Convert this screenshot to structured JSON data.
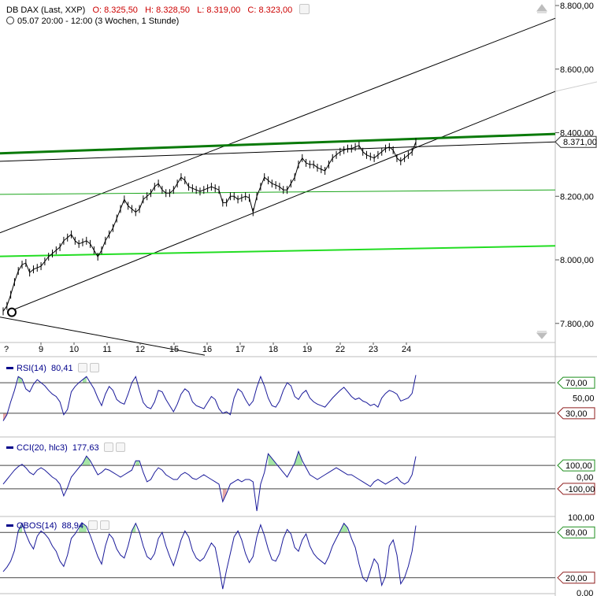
{
  "header": {
    "instrument": "DB DAX (Last, XXP)",
    "open": "O: 8.325,50",
    "high": "H: 8.328,50",
    "low": "L: 8.319,00",
    "close": "C: 8.323,00",
    "period": "05.07 20:00 - 12:00 (3 Wochen, 1 Stunde)"
  },
  "colors": {
    "price_line": "#000000",
    "trend_dark_green": "#0a7a0a",
    "trend_green": "#1aa51a",
    "trend_bright_green": "#22dd22",
    "indicator_line": "#1a1a9a",
    "overbought_fill": "#a6e6a6",
    "oversold_fill": "#e6a6a6"
  },
  "chart_data": [
    {
      "type": "line",
      "title": "DB DAX (Last, XXP)",
      "ylim": [
        7740,
        8810
      ],
      "yticks": [
        7800,
        8000,
        8200,
        8400,
        8600,
        8800
      ],
      "ytick_labels": [
        "7.800,00",
        "8.000,00",
        "8.200,00",
        "8.400,00",
        "8.600,00",
        "8.800,00"
      ],
      "last_value_label": "8.371,00",
      "last_value": 8371,
      "x_day_ticks": [
        "9",
        "10",
        "11",
        "12",
        "15",
        "16",
        "17",
        "18",
        "19",
        "22",
        "23",
        "24"
      ],
      "x_first_tick": "?",
      "series": [
        {
          "values": [
            7838,
            7855,
            7890,
            7930,
            7965,
            7985,
            7990,
            7960,
            7970,
            7975,
            7980,
            7995,
            8010,
            8020,
            8030,
            8040,
            8060,
            8070,
            8080,
            8060,
            8050,
            8055,
            8060,
            8050,
            8030,
            8010,
            8030,
            8060,
            8080,
            8100,
            8130,
            8160,
            8190,
            8170,
            8160,
            8150,
            8160,
            8190,
            8200,
            8210,
            8230,
            8240,
            8220,
            8210,
            8210,
            8220,
            8240,
            8260,
            8250,
            8230,
            8225,
            8220,
            8215,
            8220,
            8225,
            8230,
            8225,
            8220,
            8180,
            8180,
            8200,
            8200,
            8190,
            8195,
            8200,
            8195,
            8150,
            8200,
            8230,
            8260,
            8250,
            8240,
            8235,
            8230,
            8220,
            8220,
            8240,
            8260,
            8300,
            8320,
            8305,
            8300,
            8300,
            8290,
            8285,
            8280,
            8300,
            8320,
            8330,
            8340,
            8345,
            8350,
            8350,
            8355,
            8360,
            8340,
            8330,
            8325,
            8320,
            8330,
            8340,
            8350,
            8355,
            8345,
            8320,
            8310,
            8320,
            8330,
            8340,
            8371
          ]
        }
      ],
      "trend_lines": [
        {
          "name": "dark-green-resistance",
          "y_start": 8335,
          "y_end": 8396
        },
        {
          "name": "green-support",
          "y_start": 8206,
          "y_end": 8220
        },
        {
          "name": "bright-green-support",
          "y_start": 8011,
          "y_end": 8044
        },
        {
          "name": "horizontal-channel",
          "y_start": 8310,
          "y_end": 8371
        }
      ]
    },
    {
      "type": "line",
      "title": "RSI(14)",
      "current_value": "80,41",
      "ylim": [
        0,
        100
      ],
      "levels": [
        70,
        30
      ],
      "level_labels": [
        "70,00",
        "30,00"
      ],
      "axis_labels": [
        "50,00"
      ],
      "series": [
        {
          "values": [
            20,
            28,
            45,
            60,
            78,
            75,
            62,
            58,
            68,
            74,
            70,
            66,
            60,
            55,
            52,
            45,
            28,
            35,
            58,
            65,
            70,
            74,
            78,
            70,
            62,
            50,
            40,
            55,
            65,
            60,
            48,
            44,
            42,
            55,
            70,
            78,
            60,
            44,
            38,
            36,
            45,
            60,
            58,
            48,
            40,
            32,
            42,
            55,
            62,
            58,
            45,
            40,
            38,
            36,
            44,
            52,
            48,
            36,
            30,
            32,
            28,
            50,
            62,
            58,
            48,
            40,
            46,
            64,
            78,
            66,
            50,
            40,
            38,
            46,
            60,
            70,
            66,
            52,
            48,
            56,
            60,
            50,
            45,
            42,
            40,
            38,
            44,
            50,
            55,
            60,
            64,
            58,
            52,
            48,
            50,
            46,
            44,
            40,
            42,
            38,
            50,
            56,
            60,
            58,
            55,
            46,
            48,
            50,
            56,
            80
          ]
        }
      ]
    },
    {
      "type": "line",
      "title": "CCI(20, hlc3)",
      "current_value": "177,63",
      "ylim": [
        -330,
        330
      ],
      "levels": [
        100,
        -100
      ],
      "level_labels": [
        "100,00",
        "-100,00"
      ],
      "axis_labels": [
        "0,00"
      ],
      "series": [
        {
          "values": [
            -60,
            -20,
            20,
            60,
            90,
            110,
            80,
            40,
            20,
            60,
            80,
            60,
            30,
            0,
            -20,
            -60,
            -160,
            -90,
            0,
            40,
            80,
            120,
            180,
            140,
            80,
            20,
            40,
            70,
            60,
            40,
            20,
            0,
            20,
            40,
            60,
            140,
            140,
            40,
            -40,
            -20,
            40,
            80,
            60,
            20,
            0,
            -20,
            -20,
            20,
            40,
            20,
            -10,
            -20,
            0,
            20,
            0,
            -20,
            -40,
            -60,
            -210,
            -140,
            -60,
            -40,
            -20,
            -40,
            -20,
            -20,
            -40,
            -290,
            -60,
            40,
            200,
            160,
            120,
            80,
            40,
            0,
            60,
            120,
            220,
            140,
            80,
            20,
            0,
            -20,
            0,
            20,
            40,
            60,
            80,
            60,
            40,
            20,
            20,
            0,
            -20,
            -40,
            -60,
            -80,
            -40,
            -20,
            -40,
            -60,
            -40,
            -20,
            0,
            -40,
            -60,
            -40,
            20,
            178
          ]
        }
      ]
    },
    {
      "type": "line",
      "title": "OBOS(14)",
      "current_value": "88,94",
      "ylim": [
        0,
        100
      ],
      "levels": [
        80,
        20
      ],
      "level_labels": [
        "80,00",
        "20,00"
      ],
      "axis_labels": [
        "100,00",
        "0,00"
      ],
      "series": [
        {
          "values": [
            28,
            34,
            42,
            56,
            82,
            92,
            78,
            66,
            58,
            75,
            82,
            78,
            72,
            62,
            55,
            42,
            35,
            50,
            72,
            78,
            86,
            92,
            88,
            76,
            62,
            48,
            38,
            62,
            78,
            72,
            58,
            50,
            46,
            62,
            82,
            92,
            80,
            62,
            48,
            44,
            52,
            72,
            80,
            62,
            48,
            36,
            52,
            70,
            82,
            74,
            56,
            46,
            42,
            46,
            56,
            66,
            60,
            35,
            5,
            30,
            52,
            74,
            82,
            70,
            52,
            40,
            48,
            74,
            90,
            76,
            58,
            44,
            42,
            52,
            72,
            84,
            78,
            60,
            55,
            70,
            78,
            62,
            52,
            46,
            42,
            38,
            48,
            62,
            72,
            82,
            92,
            86,
            72,
            60,
            38,
            20,
            15,
            30,
            45,
            38,
            10,
            22,
            62,
            70,
            50,
            12,
            20,
            35,
            55,
            89
          ]
        }
      ]
    }
  ]
}
